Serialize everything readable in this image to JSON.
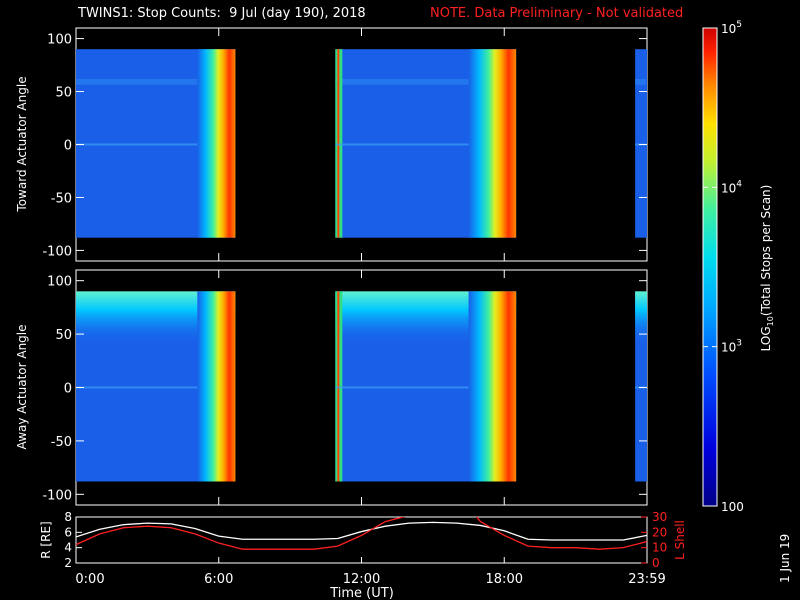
{
  "header": {
    "title": "TWINS1: Stop Counts:  9 Jul (day 190), 2018",
    "note": "NOTE. Data Preliminary - Not validated",
    "note_color": "#ff2020"
  },
  "side_label": "1 Jun 19",
  "chart_data": [
    {
      "type": "heatmap",
      "panel": "toward",
      "ylabel": "Toward Actuator Angle",
      "xlabel": "",
      "xlim": [
        0,
        24
      ],
      "ylim": [
        -110,
        110
      ],
      "yticks": [
        "100",
        "50",
        "0",
        "-50",
        "-100"
      ],
      "data_extent_y": [
        -88,
        90
      ],
      "data_segments_ut": [
        [
          0.0,
          6.7
        ],
        [
          10.9,
          18.5
        ],
        [
          23.5,
          24.0
        ]
      ],
      "sunward_ramp_start_ut": [
        5.1,
        16.5,
        null
      ],
      "colorscale": "log10 counts (100 to 1e5)"
    },
    {
      "type": "heatmap",
      "panel": "away",
      "ylabel": "Away Actuator Angle",
      "xlabel": "",
      "xlim": [
        0,
        24
      ],
      "ylim": [
        -110,
        110
      ],
      "yticks": [
        "100",
        "50",
        "0",
        "-50",
        "-100"
      ],
      "data_extent_y": [
        -88,
        90
      ],
      "data_segments_ut": [
        [
          0.0,
          6.7
        ],
        [
          10.9,
          18.5
        ],
        [
          23.5,
          24.0
        ]
      ],
      "sunward_ramp_start_ut": [
        5.1,
        16.5,
        null
      ],
      "colorscale": "log10 counts (100 to 1e5)"
    },
    {
      "type": "line",
      "panel": "orbit",
      "xlabel": "Time (UT)",
      "xticks": [
        "0:00",
        "6:00",
        "12:00",
        "18:00",
        "23:59"
      ],
      "xlim": [
        0,
        24
      ],
      "ylabel_left": "R [RE]",
      "ylim_left": [
        2,
        8
      ],
      "yticks_left": [
        "2",
        "4",
        "6",
        "8"
      ],
      "ylabel_right": "L Shell",
      "ylim_right": [
        0,
        30
      ],
      "yticks_right": [
        "0",
        "10",
        "20",
        "30"
      ],
      "series": [
        {
          "name": "R [RE]",
          "color": "#ffffff",
          "axis": "left",
          "x": [
            0,
            1,
            2,
            3,
            4,
            5,
            6,
            7,
            8,
            9,
            10,
            11,
            12,
            13,
            14,
            15,
            16,
            17,
            18,
            19,
            20,
            21,
            22,
            23,
            24
          ],
          "y": [
            5.4,
            6.4,
            7.0,
            7.2,
            7.1,
            6.5,
            5.5,
            5.1,
            5.1,
            5.1,
            5.1,
            5.2,
            6.1,
            6.8,
            7.2,
            7.3,
            7.2,
            6.9,
            6.2,
            5.1,
            5.0,
            5.0,
            5.0,
            5.0,
            5.6
          ]
        },
        {
          "name": "L Shell",
          "color": "#ff2020",
          "axis": "right",
          "x": [
            0,
            1,
            2,
            3,
            4,
            5,
            6,
            7,
            8,
            9,
            10,
            11,
            12,
            13,
            14,
            16.8,
            17,
            18,
            19,
            20,
            21,
            22,
            23,
            24
          ],
          "y": [
            12,
            19,
            23,
            24,
            23,
            19,
            13,
            9,
            9,
            9,
            9,
            11,
            18,
            27,
            31,
            31,
            27,
            18,
            11,
            10,
            10,
            9,
            10,
            14
          ]
        }
      ]
    }
  ],
  "colorbar": {
    "label": "LOG10(Total Stops per Scan)",
    "ticks": [
      "10^5",
      "10^4",
      "10^3",
      "100"
    ]
  }
}
